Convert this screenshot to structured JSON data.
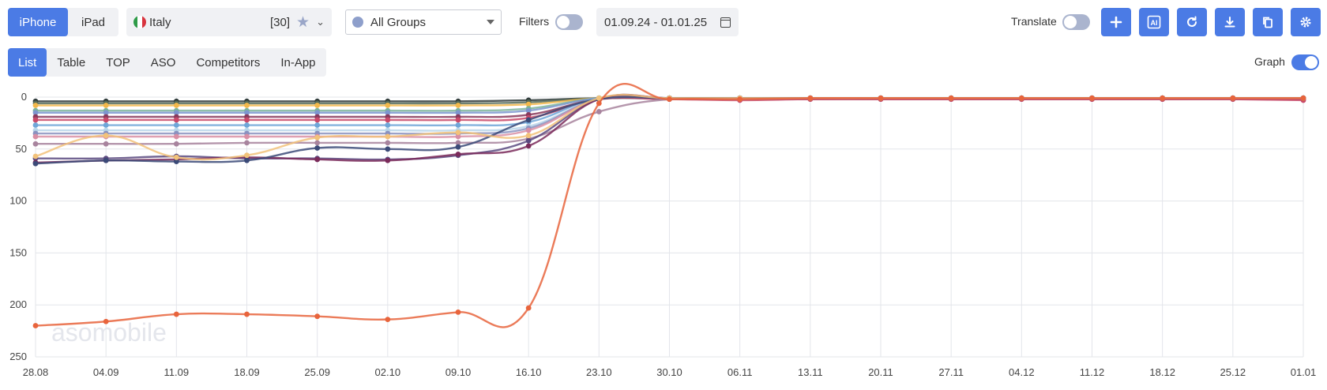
{
  "toolbar": {
    "device_tabs": [
      "iPhone",
      "iPad"
    ],
    "active_device": "iPhone",
    "country": {
      "name": "Italy",
      "count": "[30]"
    },
    "groups": {
      "value": "All Groups"
    },
    "filters_label": "Filters",
    "filters_on": false,
    "date_range": "01.09.24 - 01.01.25",
    "translate_label": "Translate",
    "translate_on": false,
    "accent_color": "#4b7be5",
    "action_icons": [
      "plus-icon",
      "ai-icon",
      "refresh-icon",
      "download-icon",
      "copy-icon",
      "settings-icon"
    ]
  },
  "view_tabs": {
    "items": [
      "List",
      "Table",
      "TOP",
      "ASO",
      "Competitors",
      "In-App"
    ],
    "active": "List",
    "graph_label": "Graph",
    "graph_on": true
  },
  "watermark": "asomobile",
  "chart_data": {
    "type": "line",
    "x": [
      "28.08",
      "04.09",
      "11.09",
      "18.09",
      "25.09",
      "02.10",
      "09.10",
      "16.10",
      "23.10",
      "30.10",
      "06.11",
      "13.11",
      "20.11",
      "27.11",
      "04.12",
      "11.12",
      "18.12",
      "25.12",
      "01.01"
    ],
    "ylim": [
      0,
      250
    ],
    "y_inverted": true,
    "yticks": [
      0,
      50,
      100,
      150,
      200,
      250
    ],
    "grid": true,
    "series": [
      {
        "color": "#e8643c",
        "values": [
          220,
          216,
          209,
          209,
          211,
          214,
          207,
          203,
          6,
          2,
          2,
          1,
          1,
          1,
          1,
          1,
          1,
          1,
          1
        ]
      },
      {
        "color": "#f2c27a",
        "values": [
          57,
          37,
          58,
          56,
          39,
          38,
          34,
          37,
          1,
          1,
          1,
          1,
          1,
          1,
          1,
          1,
          1,
          1,
          1
        ]
      },
      {
        "color": "#3b4a78",
        "values": [
          64,
          61,
          62,
          61,
          49,
          50,
          48,
          22,
          2,
          1,
          1,
          1,
          1,
          1,
          1,
          1,
          1,
          1,
          1
        ]
      },
      {
        "color": "#7a2a5a",
        "values": [
          63,
          61,
          60,
          58,
          60,
          61,
          55,
          47,
          2,
          1,
          1,
          1,
          1,
          1,
          1,
          1,
          1,
          1,
          1
        ]
      },
      {
        "color": "#5b4a80",
        "values": [
          59,
          59,
          57,
          59,
          59,
          60,
          56,
          42,
          2,
          1,
          1,
          1,
          1,
          1,
          1,
          1,
          1,
          1,
          1
        ]
      },
      {
        "color": "#a8849e",
        "values": [
          45,
          45,
          45,
          44,
          44,
          44,
          44,
          40,
          14,
          2,
          2,
          1,
          1,
          1,
          1,
          1,
          1,
          1,
          1
        ]
      },
      {
        "color": "#d98fa5",
        "values": [
          38,
          38,
          38,
          38,
          38,
          38,
          38,
          32,
          2,
          1,
          1,
          1,
          1,
          1,
          1,
          1,
          1,
          1,
          1
        ]
      },
      {
        "color": "#8a92c0",
        "values": [
          35,
          35,
          35,
          35,
          35,
          35,
          35,
          30,
          2,
          1,
          1,
          1,
          1,
          1,
          1,
          1,
          1,
          1,
          1
        ]
      },
      {
        "color": "#b9d6ea",
        "values": [
          32,
          32,
          32,
          32,
          32,
          32,
          32,
          28,
          2,
          1,
          1,
          1,
          1,
          1,
          1,
          1,
          1,
          1,
          1
        ]
      },
      {
        "color": "#6fa6d8",
        "values": [
          27,
          27,
          27,
          27,
          27,
          27,
          27,
          24,
          1,
          1,
          1,
          1,
          1,
          1,
          1,
          1,
          1,
          1,
          1
        ]
      },
      {
        "color": "#c94a6a",
        "values": [
          22,
          22,
          22,
          22,
          22,
          22,
          22,
          20,
          2,
          2,
          3,
          2,
          2,
          2,
          2,
          2,
          2,
          2,
          3
        ]
      },
      {
        "color": "#8a3a5c",
        "values": [
          19,
          19,
          19,
          19,
          19,
          19,
          19,
          17,
          2,
          2,
          2,
          2,
          2,
          2,
          2,
          2,
          2,
          2,
          2
        ]
      },
      {
        "color": "#7d96cf",
        "values": [
          15,
          15,
          15,
          15,
          15,
          15,
          15,
          13,
          1,
          1,
          1,
          1,
          1,
          1,
          1,
          1,
          1,
          1,
          1
        ]
      },
      {
        "color": "#7cb59a",
        "values": [
          13,
          13,
          13,
          13,
          13,
          13,
          13,
          11,
          1,
          1,
          1,
          1,
          1,
          1,
          1,
          1,
          1,
          1,
          1
        ]
      },
      {
        "color": "#f2b84b",
        "values": [
          8,
          8,
          8,
          8,
          8,
          8,
          8,
          7,
          1,
          1,
          1,
          1,
          1,
          1,
          1,
          1,
          1,
          1,
          1
        ]
      },
      {
        "color": "#556b59",
        "values": [
          6,
          6,
          6,
          6,
          6,
          6,
          6,
          5,
          1,
          1,
          1,
          1,
          1,
          1,
          1,
          1,
          1,
          1,
          1
        ]
      },
      {
        "color": "#2f3b3a",
        "values": [
          4,
          4,
          4,
          4,
          4,
          4,
          4,
          3,
          1,
          1,
          1,
          1,
          1,
          1,
          1,
          1,
          1,
          1,
          1
        ]
      }
    ]
  }
}
